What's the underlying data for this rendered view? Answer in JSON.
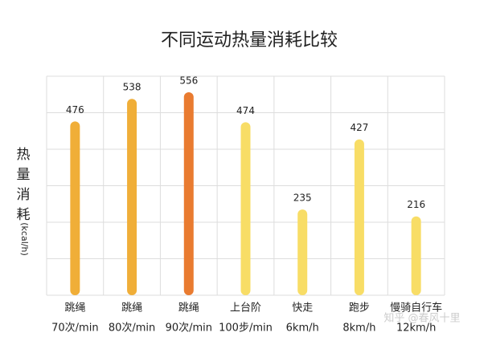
{
  "chart_data": {
    "type": "bar",
    "title": "不同运动热量消耗比较",
    "y_label": "热量消耗",
    "y_unit": "(kcal/h)",
    "categories": [
      [
        "跳绳",
        "70次/min"
      ],
      [
        "跳绳",
        "80次/min"
      ],
      [
        "跳绳",
        "90次/min"
      ],
      [
        "上台阶",
        "100步/min"
      ],
      [
        "快走",
        "6km/h"
      ],
      [
        "跑步",
        "8km/h"
      ],
      [
        "慢骑自行车",
        "12km/h"
      ]
    ],
    "values": [
      476,
      538,
      556,
      474,
      235,
      427,
      216
    ],
    "colors": [
      "#f0ae38",
      "#f0ae38",
      "#e97b30",
      "#f8dd66",
      "#f8dd66",
      "#f8dd66",
      "#f8dd66"
    ],
    "ylim": [
      0,
      600
    ],
    "yticks": [
      0,
      100,
      200,
      300,
      400,
      500,
      600
    ],
    "grid": true,
    "watermark": "知乎 @春风十里"
  }
}
